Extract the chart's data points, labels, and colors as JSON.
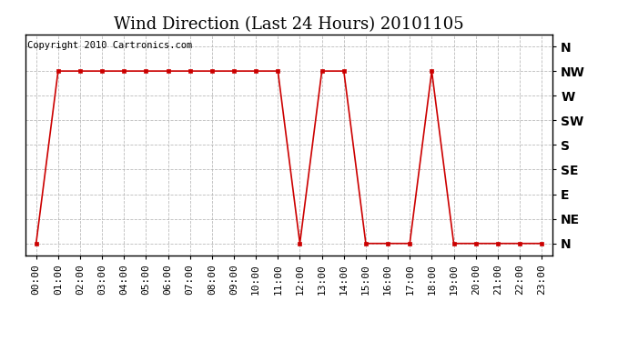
{
  "title": "Wind Direction (Last 24 Hours) 20101105",
  "copyright": "Copyright 2010 Cartronics.com",
  "x_labels": [
    "00:00",
    "01:00",
    "02:00",
    "03:00",
    "04:00",
    "05:00",
    "06:00",
    "07:00",
    "08:00",
    "09:00",
    "10:00",
    "11:00",
    "12:00",
    "13:00",
    "14:00",
    "15:00",
    "16:00",
    "17:00",
    "18:00",
    "19:00",
    "20:00",
    "21:00",
    "22:00",
    "23:00"
  ],
  "x_values": [
    0,
    1,
    2,
    3,
    4,
    5,
    6,
    7,
    8,
    9,
    10,
    11,
    12,
    13,
    14,
    15,
    16,
    17,
    18,
    19,
    20,
    21,
    22,
    23
  ],
  "y_values": [
    0,
    7,
    7,
    7,
    7,
    7,
    7,
    7,
    7,
    7,
    7,
    7,
    0,
    7,
    7,
    0,
    0,
    0,
    7,
    0,
    0,
    0,
    0,
    0
  ],
  "ytick_positions": [
    0,
    1,
    2,
    3,
    4,
    5,
    6,
    7,
    8
  ],
  "ytick_labels": [
    "N",
    "NE",
    "E",
    "SE",
    "S",
    "SW",
    "W",
    "NW",
    "N"
  ],
  "line_color": "#cc0000",
  "marker_color": "#cc0000",
  "grid_color": "#aaaaaa",
  "bg_color": "#ffffff",
  "plot_bg_color": "#ffffff",
  "title_fontsize": 13,
  "tick_fontsize": 8,
  "copyright_fontsize": 7.5
}
